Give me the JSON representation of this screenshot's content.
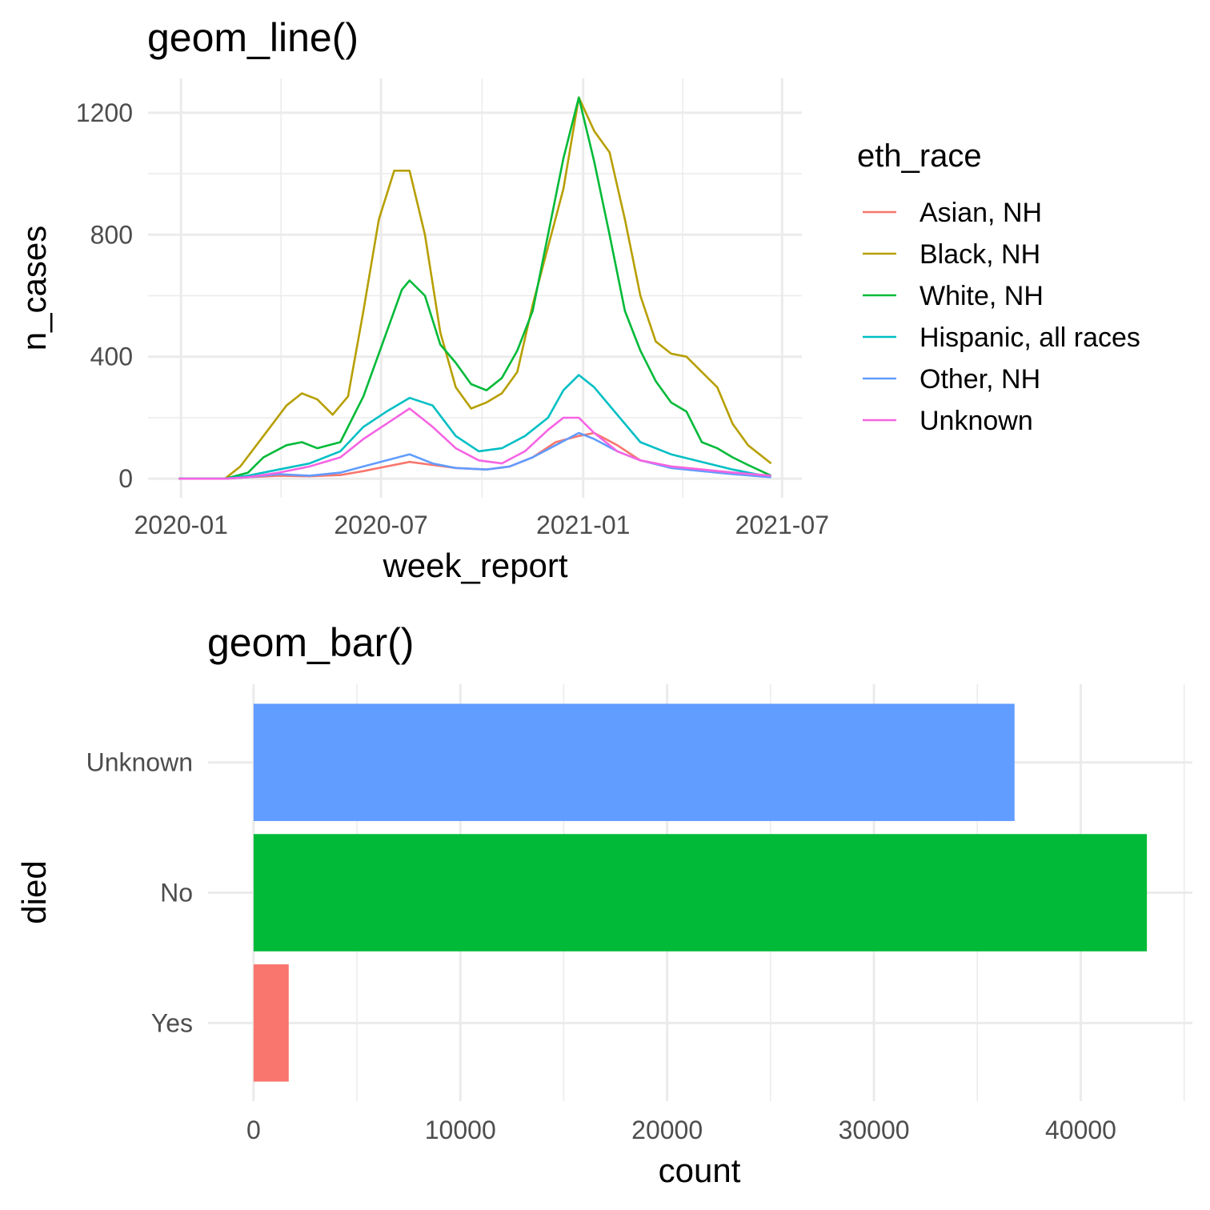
{
  "chart_data": [
    {
      "type": "line",
      "title": "geom_line()",
      "xlabel": "week_report",
      "ylabel": "n_cases",
      "x_ticks": [
        "2020-01",
        "2020-07",
        "2021-01",
        "2021-07"
      ],
      "y_ticks": [
        0,
        400,
        800,
        1200
      ],
      "xlim": [
        "2019-12-30",
        "2021-06-21"
      ],
      "ylim": [
        0,
        1250
      ],
      "grid": true,
      "legend": {
        "title": "eth_race",
        "position": "right"
      },
      "series": [
        {
          "name": "Asian, NH",
          "color": "#F8766D",
          "points": [
            [
              "2019-12-30",
              0
            ],
            [
              "2020-02-10",
              0
            ],
            [
              "2020-03-02",
              5
            ],
            [
              "2020-03-30",
              10
            ],
            [
              "2020-04-27",
              8
            ],
            [
              "2020-05-25",
              12
            ],
            [
              "2020-06-15",
              25
            ],
            [
              "2020-07-06",
              40
            ],
            [
              "2020-07-27",
              55
            ],
            [
              "2020-08-17",
              45
            ],
            [
              "2020-09-07",
              35
            ],
            [
              "2020-10-05",
              30
            ],
            [
              "2020-10-26",
              40
            ],
            [
              "2020-11-16",
              70
            ],
            [
              "2020-12-07",
              120
            ],
            [
              "2020-12-28",
              140
            ],
            [
              "2021-01-11",
              150
            ],
            [
              "2021-02-01",
              110
            ],
            [
              "2021-02-22",
              60
            ],
            [
              "2021-03-22",
              40
            ],
            [
              "2021-04-19",
              30
            ],
            [
              "2021-05-17",
              20
            ],
            [
              "2021-06-21",
              10
            ]
          ]
        },
        {
          "name": "Black, NH",
          "color": "#B79F00",
          "points": [
            [
              "2019-12-30",
              0
            ],
            [
              "2020-02-10",
              0
            ],
            [
              "2020-02-24",
              40
            ],
            [
              "2020-03-16",
              140
            ],
            [
              "2020-04-06",
              240
            ],
            [
              "2020-04-20",
              280
            ],
            [
              "2020-05-04",
              260
            ],
            [
              "2020-05-18",
              210
            ],
            [
              "2020-06-01",
              270
            ],
            [
              "2020-06-15",
              550
            ],
            [
              "2020-06-29",
              850
            ],
            [
              "2020-07-13",
              1010
            ],
            [
              "2020-07-27",
              1010
            ],
            [
              "2020-08-10",
              800
            ],
            [
              "2020-08-24",
              480
            ],
            [
              "2020-09-07",
              300
            ],
            [
              "2020-09-21",
              230
            ],
            [
              "2020-10-05",
              250
            ],
            [
              "2020-10-19",
              280
            ],
            [
              "2020-11-02",
              350
            ],
            [
              "2020-11-16",
              570
            ],
            [
              "2020-11-30",
              760
            ],
            [
              "2020-12-14",
              950
            ],
            [
              "2020-12-28",
              1250
            ],
            [
              "2021-01-11",
              1140
            ],
            [
              "2021-01-25",
              1070
            ],
            [
              "2021-02-08",
              850
            ],
            [
              "2021-02-22",
              600
            ],
            [
              "2021-03-08",
              450
            ],
            [
              "2021-03-22",
              410
            ],
            [
              "2021-04-05",
              400
            ],
            [
              "2021-04-19",
              350
            ],
            [
              "2021-05-03",
              300
            ],
            [
              "2021-05-17",
              180
            ],
            [
              "2021-05-31",
              110
            ],
            [
              "2021-06-21",
              50
            ]
          ]
        },
        {
          "name": "White, NH",
          "color": "#00BA38",
          "points": [
            [
              "2019-12-30",
              0
            ],
            [
              "2020-02-10",
              0
            ],
            [
              "2020-03-02",
              20
            ],
            [
              "2020-03-16",
              70
            ],
            [
              "2020-04-06",
              110
            ],
            [
              "2020-04-20",
              120
            ],
            [
              "2020-05-04",
              100
            ],
            [
              "2020-05-25",
              120
            ],
            [
              "2020-06-15",
              270
            ],
            [
              "2020-07-06",
              480
            ],
            [
              "2020-07-20",
              620
            ],
            [
              "2020-07-27",
              650
            ],
            [
              "2020-08-10",
              600
            ],
            [
              "2020-08-24",
              440
            ],
            [
              "2020-09-07",
              380
            ],
            [
              "2020-09-21",
              310
            ],
            [
              "2020-10-05",
              290
            ],
            [
              "2020-10-19",
              330
            ],
            [
              "2020-11-02",
              420
            ],
            [
              "2020-11-16",
              550
            ],
            [
              "2020-11-30",
              800
            ],
            [
              "2020-12-14",
              1050
            ],
            [
              "2020-12-28",
              1250
            ],
            [
              "2021-01-11",
              1040
            ],
            [
              "2021-01-25",
              800
            ],
            [
              "2021-02-08",
              550
            ],
            [
              "2021-02-22",
              420
            ],
            [
              "2021-03-08",
              320
            ],
            [
              "2021-03-22",
              250
            ],
            [
              "2021-04-05",
              220
            ],
            [
              "2021-04-19",
              120
            ],
            [
              "2021-05-03",
              100
            ],
            [
              "2021-05-17",
              70
            ],
            [
              "2021-05-31",
              45
            ],
            [
              "2021-06-21",
              10
            ]
          ]
        },
        {
          "name": "Hispanic, all races",
          "color": "#00BFC4",
          "points": [
            [
              "2019-12-30",
              0
            ],
            [
              "2020-02-10",
              0
            ],
            [
              "2020-03-02",
              10
            ],
            [
              "2020-03-30",
              30
            ],
            [
              "2020-04-27",
              50
            ],
            [
              "2020-05-25",
              90
            ],
            [
              "2020-06-15",
              170
            ],
            [
              "2020-07-06",
              220
            ],
            [
              "2020-07-27",
              265
            ],
            [
              "2020-08-17",
              240
            ],
            [
              "2020-09-07",
              140
            ],
            [
              "2020-09-28",
              90
            ],
            [
              "2020-10-19",
              100
            ],
            [
              "2020-11-09",
              140
            ],
            [
              "2020-11-30",
              200
            ],
            [
              "2020-12-14",
              290
            ],
            [
              "2020-12-28",
              340
            ],
            [
              "2021-01-11",
              300
            ],
            [
              "2021-02-01",
              210
            ],
            [
              "2021-02-22",
              120
            ],
            [
              "2021-03-22",
              80
            ],
            [
              "2021-04-19",
              55
            ],
            [
              "2021-05-17",
              30
            ],
            [
              "2021-06-21",
              5
            ]
          ]
        },
        {
          "name": "Other, NH",
          "color": "#619CFF",
          "points": [
            [
              "2019-12-30",
              0
            ],
            [
              "2020-02-10",
              0
            ],
            [
              "2020-03-02",
              5
            ],
            [
              "2020-03-30",
              15
            ],
            [
              "2020-04-27",
              10
            ],
            [
              "2020-05-25",
              20
            ],
            [
              "2020-06-15",
              40
            ],
            [
              "2020-07-06",
              60
            ],
            [
              "2020-07-27",
              80
            ],
            [
              "2020-08-17",
              50
            ],
            [
              "2020-09-07",
              35
            ],
            [
              "2020-10-05",
              30
            ],
            [
              "2020-10-26",
              40
            ],
            [
              "2020-11-16",
              70
            ],
            [
              "2020-12-07",
              110
            ],
            [
              "2020-12-28",
              150
            ],
            [
              "2021-01-11",
              130
            ],
            [
              "2021-02-01",
              90
            ],
            [
              "2021-02-22",
              60
            ],
            [
              "2021-03-22",
              35
            ],
            [
              "2021-04-19",
              25
            ],
            [
              "2021-05-17",
              15
            ],
            [
              "2021-06-21",
              5
            ]
          ]
        },
        {
          "name": "Unknown",
          "color": "#F564E3",
          "points": [
            [
              "2019-12-30",
              0
            ],
            [
              "2020-02-10",
              0
            ],
            [
              "2020-03-02",
              5
            ],
            [
              "2020-03-30",
              20
            ],
            [
              "2020-04-27",
              40
            ],
            [
              "2020-05-25",
              70
            ],
            [
              "2020-06-15",
              130
            ],
            [
              "2020-07-06",
              180
            ],
            [
              "2020-07-27",
              230
            ],
            [
              "2020-08-17",
              170
            ],
            [
              "2020-09-07",
              100
            ],
            [
              "2020-09-28",
              60
            ],
            [
              "2020-10-19",
              50
            ],
            [
              "2020-11-09",
              90
            ],
            [
              "2020-11-30",
              160
            ],
            [
              "2020-12-14",
              200
            ],
            [
              "2020-12-28",
              200
            ],
            [
              "2021-01-11",
              150
            ],
            [
              "2021-02-01",
              90
            ],
            [
              "2021-02-22",
              60
            ],
            [
              "2021-03-22",
              40
            ],
            [
              "2021-04-19",
              30
            ],
            [
              "2021-05-17",
              20
            ],
            [
              "2021-06-21",
              10
            ]
          ]
        }
      ]
    },
    {
      "type": "bar",
      "orientation": "horizontal",
      "title": "geom_bar()",
      "xlabel": "count",
      "ylabel": "died",
      "categories": [
        "Yes",
        "No",
        "Unknown"
      ],
      "values": [
        1700,
        43200,
        36800
      ],
      "colors": [
        "#F8766D",
        "#00BA38",
        "#619CFF"
      ],
      "x_ticks": [
        0,
        10000,
        20000,
        30000,
        40000
      ],
      "xlim": [
        -2200,
        45400
      ],
      "grid": true
    }
  ]
}
